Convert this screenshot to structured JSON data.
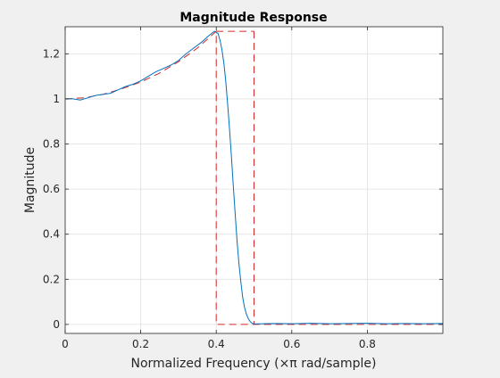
{
  "chart_data": {
    "type": "line",
    "title": "Magnitude Response",
    "xlabel": "Normalized Frequency (×π rad/sample)",
    "ylabel": "Magnitude",
    "xlim": [
      0,
      1
    ],
    "ylim": [
      -0.04,
      1.32
    ],
    "grid": true,
    "x_ticks": [
      0,
      0.2,
      0.4,
      0.6,
      0.8
    ],
    "x_tick_labels": [
      "0",
      "0.2",
      "0.4",
      "0.6",
      "0.8"
    ],
    "y_ticks": [
      0,
      0.2,
      0.4,
      0.6,
      0.8,
      1,
      1.2
    ],
    "y_tick_labels": [
      "0",
      "0.2",
      "0.4",
      "0.6",
      "0.8",
      "1",
      "1.2"
    ],
    "series": [
      {
        "role": "response",
        "style": "solid",
        "color": "#0072bd",
        "x": [
          0,
          0.02,
          0.04,
          0.06,
          0.08,
          0.1,
          0.12,
          0.14,
          0.16,
          0.18,
          0.2,
          0.22,
          0.24,
          0.26,
          0.28,
          0.3,
          0.32,
          0.34,
          0.36,
          0.38,
          0.395,
          0.405,
          0.41,
          0.415,
          0.42,
          0.425,
          0.43,
          0.435,
          0.44,
          0.445,
          0.45,
          0.455,
          0.46,
          0.465,
          0.47,
          0.475,
          0.48,
          0.485,
          0.49,
          0.495,
          0.5,
          0.55,
          0.6,
          0.65,
          0.7,
          0.75,
          0.8,
          0.85,
          0.9,
          0.95,
          1.0
        ],
        "values": [
          1.0,
          1.0,
          0.995,
          1.005,
          1.015,
          1.02,
          1.025,
          1.04,
          1.055,
          1.065,
          1.08,
          1.1,
          1.12,
          1.135,
          1.15,
          1.17,
          1.2,
          1.225,
          1.25,
          1.28,
          1.3,
          1.29,
          1.26,
          1.22,
          1.16,
          1.08,
          0.98,
          0.87,
          0.75,
          0.62,
          0.49,
          0.37,
          0.27,
          0.19,
          0.12,
          0.075,
          0.045,
          0.025,
          0.012,
          0.005,
          0.002,
          0.004,
          0.003,
          0.005,
          0.003,
          0.004,
          0.005,
          0.003,
          0.004,
          0.003,
          0.004
        ]
      },
      {
        "role": "specification",
        "style": "dashed",
        "color": "#d62728",
        "x": [
          0,
          0.05,
          0.1,
          0.15,
          0.2,
          0.25,
          0.3,
          0.35,
          0.4,
          0.4,
          0.5,
          0.5,
          1.0
        ],
        "values": [
          1.0,
          1.005,
          1.02,
          1.045,
          1.075,
          1.115,
          1.165,
          1.225,
          1.3,
          0,
          0,
          0,
          0
        ],
        "extra_segments": [
          {
            "x": [
              0.4,
              0.5
            ],
            "values": [
              1.3,
              1.3
            ]
          },
          {
            "x": [
              0.5,
              0.5
            ],
            "values": [
              1.3,
              0
            ]
          }
        ]
      }
    ]
  }
}
